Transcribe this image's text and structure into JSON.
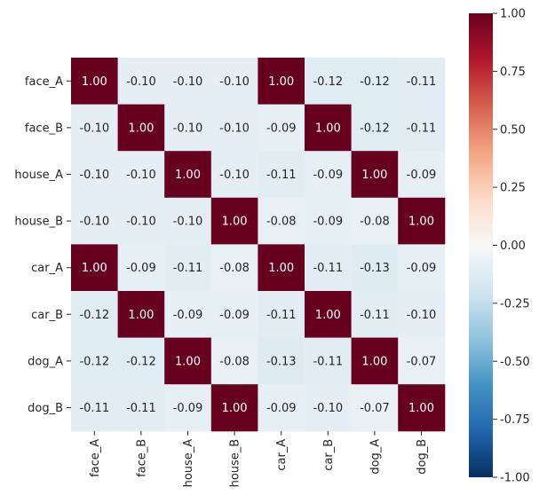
{
  "chart_data": {
    "type": "heatmap",
    "title": "",
    "xlabel": "",
    "ylabel": "",
    "rows": [
      "face_A",
      "face_B",
      "house_A",
      "house_B",
      "car_A",
      "car_B",
      "dog_A",
      "dog_B"
    ],
    "cols": [
      "face_A",
      "face_B",
      "house_A",
      "house_B",
      "car_A",
      "car_B",
      "dog_A",
      "dog_B"
    ],
    "values": [
      [
        1.0,
        -0.1,
        -0.1,
        -0.1,
        1.0,
        -0.12,
        -0.12,
        -0.11
      ],
      [
        -0.1,
        1.0,
        -0.1,
        -0.1,
        -0.09,
        1.0,
        -0.12,
        -0.11
      ],
      [
        -0.1,
        -0.1,
        1.0,
        -0.1,
        -0.11,
        -0.09,
        1.0,
        -0.09
      ],
      [
        -0.1,
        -0.1,
        -0.1,
        1.0,
        -0.08,
        -0.09,
        -0.08,
        1.0
      ],
      [
        1.0,
        -0.09,
        -0.11,
        -0.08,
        1.0,
        -0.11,
        -0.13,
        -0.09
      ],
      [
        -0.12,
        1.0,
        -0.09,
        -0.09,
        -0.11,
        1.0,
        -0.11,
        -0.1
      ],
      [
        -0.12,
        -0.12,
        1.0,
        -0.08,
        -0.13,
        -0.11,
        1.0,
        -0.07
      ],
      [
        -0.11,
        -0.11,
        -0.09,
        1.0,
        -0.09,
        -0.1,
        -0.07,
        1.0
      ]
    ],
    "value_format": "0.00",
    "colormap": "RdBu_r",
    "vmin": -1.0,
    "vmax": 1.0,
    "colorbar_ticks": [
      "1.00",
      "0.75",
      "0.50",
      "0.25",
      "0.00",
      "-0.25",
      "-0.50",
      "-0.75",
      "-1.00"
    ],
    "colorbar_tick_values": [
      1.0,
      0.75,
      0.5,
      0.25,
      0.0,
      -0.25,
      -0.5,
      -0.75,
      -1.0
    ],
    "x_tick_rotation": "vertical",
    "grid": false
  }
}
